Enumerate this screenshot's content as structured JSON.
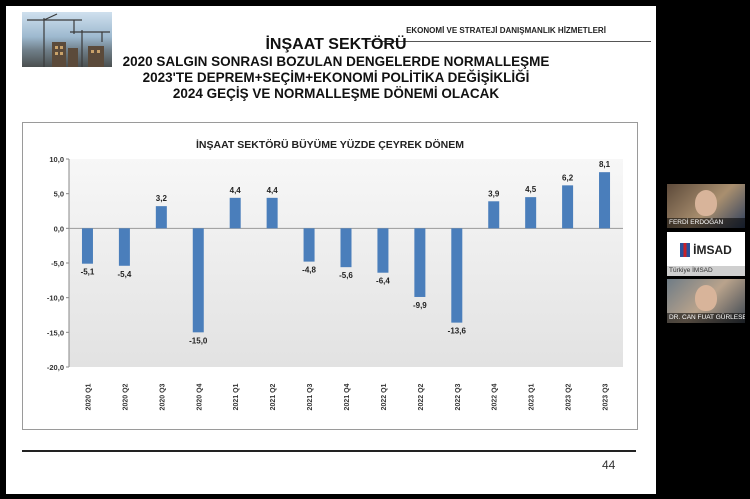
{
  "slide": {
    "header_small": "EKONOMİ VE STRATEJİ DANIŞMANLIK HİZMETLERİ",
    "title": "İNŞAAT SEKTÖRÜ",
    "subtitle_lines": [
      "2020 SALGIN SONRASI BOZULAN DENGELERDE NORMALLEŞME",
      "2023'TE DEPREM+SEÇİM+EKONOMİ POLİTİKA DEĞİŞİKLİĞİ",
      "2024 GEÇİŞ VE NORMALLEŞME DÖNEMİ OLACAK"
    ],
    "page_number": "44"
  },
  "chart_data": {
    "type": "bar",
    "title": "İNŞAAT SEKTÖRÜ BÜYÜME YÜZDE ÇEYREK DÖNEM",
    "xlabel": "",
    "ylabel": "",
    "categories": [
      "2020 Q1",
      "2020 Q2",
      "2020 Q3",
      "2020 Q4",
      "2021 Q1",
      "2021 Q2",
      "2021 Q3",
      "2021 Q4",
      "2022 Q1",
      "2022 Q2",
      "2022 Q3",
      "2022 Q4",
      "2023 Q1",
      "2023 Q2",
      "2023 Q3"
    ],
    "values": [
      -5.1,
      -5.4,
      3.2,
      -15.0,
      4.4,
      4.4,
      -4.8,
      -5.6,
      -6.4,
      -9.9,
      -13.6,
      3.9,
      4.5,
      6.2,
      8.1
    ],
    "value_labels": [
      "-5,1",
      "-5,4",
      "3,2",
      "-15,0",
      "4,4",
      "4,4",
      "-4,8",
      "-5,6",
      "-6,4",
      "-9,9",
      "-13,6",
      "3,9",
      "4,5",
      "6,2",
      "8,1"
    ],
    "ylim": [
      -20,
      10
    ],
    "yticks": [
      10,
      5,
      0,
      -5,
      -10,
      -15,
      -20
    ],
    "ytick_labels": [
      "10,0",
      "5,0",
      "0,0",
      "-5,0",
      "-10,0",
      "-15,0",
      "-20,0"
    ],
    "bar_color": "#4a7ebb",
    "grid": false
  },
  "participants": [
    {
      "name": "FERDİ ERDOĞAN"
    },
    {
      "name": "Türkiye İMSAD",
      "logo_text": "İMSAD"
    },
    {
      "name": "DR. CAN FUAT GÜRLESEL"
    }
  ]
}
